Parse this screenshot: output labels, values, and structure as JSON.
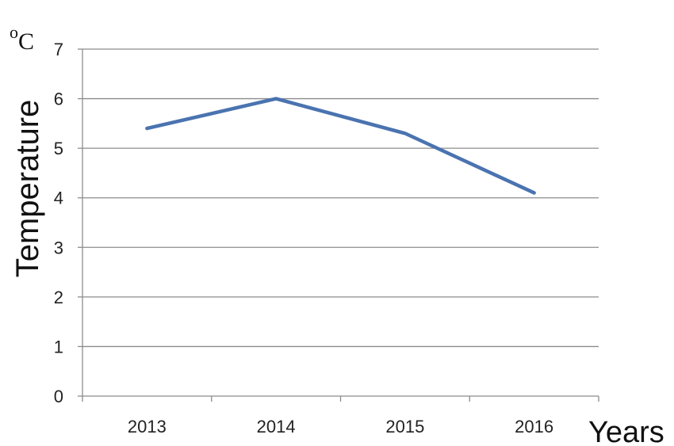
{
  "chart_data": {
    "type": "line",
    "categories": [
      "2013",
      "2014",
      "2015",
      "2016"
    ],
    "series": [
      {
        "values": [
          5.4,
          6.0,
          5.3,
          4.1
        ],
        "color": "#4a73b0"
      }
    ],
    "ylim": [
      0,
      7
    ],
    "yticks": [
      "0",
      "1",
      "2",
      "3",
      "4",
      "5",
      "6",
      "7"
    ],
    "ylabel": "Temperature",
    "xlabel": "Years",
    "unit_label": {
      "degree": "o",
      "letter": "C"
    },
    "grid": true,
    "colors": {
      "line": "#4a73b0",
      "grid": "#8c8c8c",
      "axis": "#8c8c8c"
    }
  }
}
